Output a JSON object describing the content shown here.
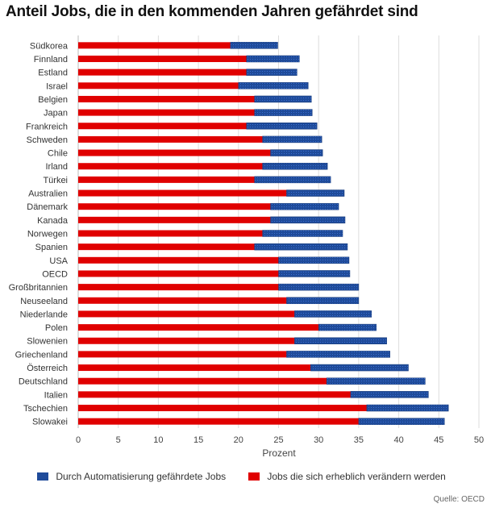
{
  "title": "Anteil Jobs, die in den kommenden Jahren gefährdet sind",
  "source": "Quelle: OECD",
  "colors": {
    "automation": "#1f4b9a",
    "change": "#e00000",
    "grid": "#dddddd"
  },
  "chart_data": {
    "type": "bar",
    "orientation": "horizontal",
    "stacked": true,
    "title": "Anteil Jobs, die in den kommenden Jahren gefährdet sind",
    "xlabel": "Prozent",
    "ylabel": "",
    "xlim": [
      0,
      50
    ],
    "xticks": [
      "0",
      "5",
      "10",
      "15",
      "20",
      "25",
      "30",
      "35",
      "40",
      "45",
      "50"
    ],
    "grid": true,
    "legend_position": "bottom",
    "categories": [
      "Südkorea",
      "Finnland",
      "Estland",
      "Israel",
      "Belgien",
      "Japan",
      "Frankreich",
      "Schweden",
      "Chile",
      "Irland",
      "Türkei",
      "Australien",
      "Dänemark",
      "Kanada",
      "Norwegen",
      "Spanien",
      "USA",
      "OECD",
      "Großbritannien",
      "Neuseeland",
      "Niederlande",
      "Polen",
      "Slowenien",
      "Griechenland",
      "Österreich",
      "Deutschland",
      "Italien",
      "Tschechien",
      "Slowakei"
    ],
    "series": [
      {
        "name": "Jobs die sich erheblich verändern werden",
        "values": [
          19,
          21,
          21,
          20,
          22,
          22,
          21,
          23,
          24,
          23,
          22,
          26,
          24,
          24,
          23,
          22,
          25,
          25,
          25,
          26,
          27,
          30,
          27,
          26,
          29,
          31,
          34,
          36,
          35
        ]
      },
      {
        "name": "Durch Automatisierung gefährdete Jobs",
        "values": [
          5.9,
          6.6,
          6.3,
          8.7,
          7.1,
          7.2,
          8.8,
          7.4,
          6.5,
          8.1,
          9.5,
          7.2,
          8.5,
          9.3,
          10,
          11.6,
          8.8,
          8.9,
          10,
          9,
          9.6,
          7.2,
          11.5,
          12.9,
          12.2,
          12.3,
          9.7,
          10.2,
          10.7
        ]
      }
    ]
  }
}
